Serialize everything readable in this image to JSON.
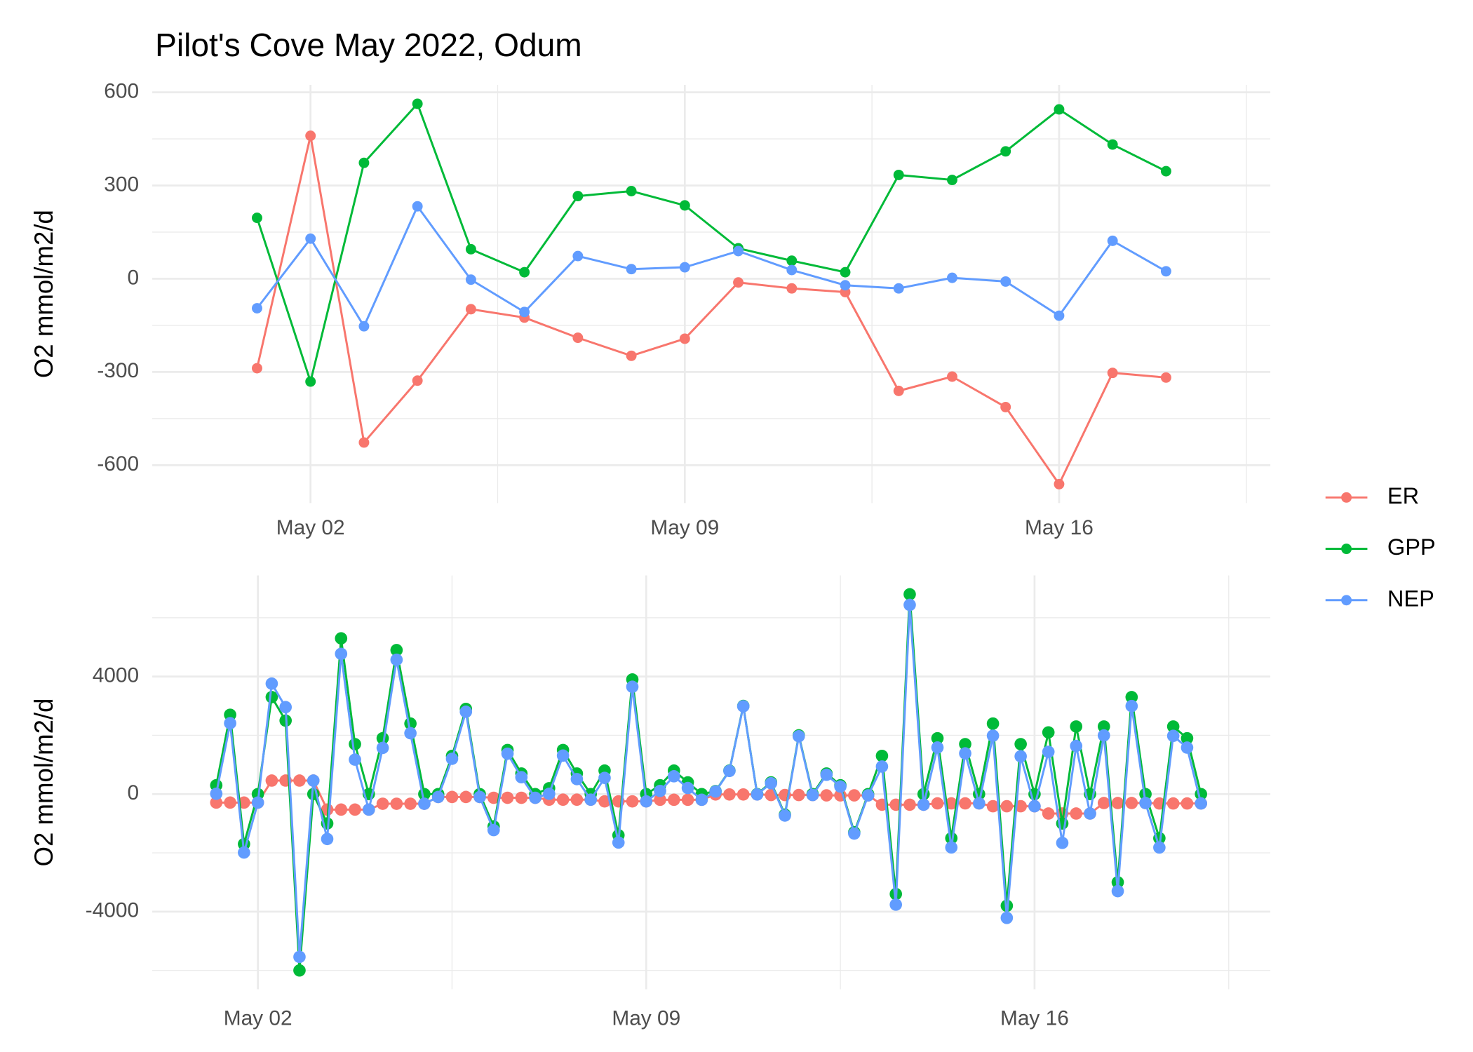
{
  "chart_data": [
    {
      "type": "line",
      "title": "Pilot's Cove May 2022, Odum",
      "ylabel": "O2 mmol/m2/d",
      "x": [
        1,
        2,
        3,
        4,
        5,
        6,
        7,
        8,
        9,
        10,
        11,
        12,
        13,
        14,
        15,
        16,
        17,
        18
      ],
      "series": [
        {
          "name": "ER",
          "color": "#F8766D",
          "values": [
            -288,
            460,
            -527,
            -328,
            -98,
            -125,
            -190,
            -248,
            -193,
            -12,
            -31,
            -43,
            -361,
            -315,
            -413,
            -661,
            -303,
            -318
          ]
        },
        {
          "name": "GPP",
          "color": "#00BA38",
          "values": [
            196,
            -331,
            373,
            563,
            95,
            21,
            266,
            282,
            236,
            98,
            58,
            21,
            334,
            318,
            410,
            545,
            432,
            346
          ]
        },
        {
          "name": "NEP",
          "color": "#619CFF",
          "values": [
            -95,
            129,
            -153,
            233,
            -3,
            -107,
            73,
            31,
            37,
            89,
            28,
            -21,
            -31,
            3,
            -9,
            -119,
            122,
            24
          ]
        }
      ],
      "xlim": [
        -0.96,
        19.95
      ],
      "xticks": [
        {
          "value": 2,
          "label": "May 02"
        },
        {
          "value": 9,
          "label": "May 09"
        },
        {
          "value": 16,
          "label": "May 16"
        }
      ],
      "xticks_minor": [
        5.5,
        12.5,
        19.5
      ],
      "ylim": [
        -722,
        624
      ],
      "yticks": [
        -600,
        -300,
        0,
        300,
        600
      ],
      "yticks_minor": [
        -450,
        -150,
        150,
        450
      ],
      "grid": true,
      "legend": "right"
    },
    {
      "type": "line",
      "ylabel": "O2 mmol/m2/d",
      "x": [
        1.25,
        1.5,
        1.75,
        2,
        2.25,
        2.5,
        2.75,
        3,
        3.25,
        3.5,
        3.75,
        4,
        4.25,
        4.5,
        4.75,
        5,
        5.25,
        5.5,
        5.75,
        6,
        6.25,
        6.5,
        6.75,
        7,
        7.25,
        7.5,
        7.75,
        8,
        8.25,
        8.5,
        8.75,
        9,
        9.25,
        9.5,
        9.75,
        10,
        10.25,
        10.5,
        10.75,
        11,
        11.25,
        11.5,
        11.75,
        12,
        12.25,
        12.5,
        12.75,
        13,
        13.25,
        13.5,
        13.75,
        14,
        14.25,
        14.5,
        14.75,
        15,
        15.25,
        15.5,
        15.75,
        16,
        16.25,
        16.5,
        16.75,
        17,
        17.25,
        17.5,
        17.75,
        18,
        18.25,
        18.5,
        18.75,
        19
      ],
      "series": [
        {
          "color": "#F8766D",
          "values": [
            -288,
            -288,
            -288,
            -288,
            460,
            460,
            460,
            460,
            -527,
            -527,
            -527,
            -527,
            -328,
            -328,
            -328,
            -328,
            -98,
            -98,
            -98,
            -98,
            -125,
            -125,
            -125,
            -125,
            -190,
            -190,
            -190,
            -190,
            -248,
            -248,
            -248,
            -248,
            -193,
            -193,
            -193,
            -193,
            -12,
            -12,
            -12,
            -12,
            -31,
            -31,
            -31,
            -31,
            -43,
            -43,
            -43,
            -43,
            -361,
            -361,
            -361,
            -361,
            -315,
            -315,
            -315,
            -315,
            -413,
            -413,
            -413,
            -413,
            -661,
            -661,
            -661,
            -661,
            -303,
            -303,
            -303,
            -303,
            -318,
            -318,
            -318,
            -318
          ]
        },
        {
          "color": "#00BA38",
          "values": [
            300,
            2700,
            -1700,
            0,
            3300,
            2500,
            -6000,
            0,
            -1000,
            5300,
            1700,
            0,
            1900,
            4900,
            2400,
            0,
            0,
            1300,
            2900,
            0,
            -1100,
            1500,
            700,
            0,
            200,
            1500,
            700,
            0,
            800,
            -1400,
            3900,
            0,
            300,
            800,
            400,
            0,
            100,
            800,
            3000,
            0,
            400,
            -700,
            2000,
            0,
            700,
            300,
            -1300,
            0,
            1300,
            -3400,
            6800,
            0,
            1900,
            -1500,
            1700,
            0,
            2400,
            -3800,
            1700,
            0,
            2100,
            -1000,
            2300,
            0,
            2300,
            -3000,
            3300,
            0,
            -1500,
            2300,
            1900,
            0
          ]
        },
        {
          "color": "#619CFF",
          "values": [
            12,
            2412,
            -1988,
            -288,
            3760,
            2960,
            -5540,
            460,
            -1527,
            4773,
            1173,
            -527,
            1572,
            4572,
            2072,
            -328,
            -98,
            1202,
            2802,
            -98,
            -1225,
            1375,
            575,
            -125,
            10,
            1310,
            510,
            -190,
            552,
            -1648,
            3652,
            -248,
            107,
            607,
            207,
            -193,
            88,
            788,
            2988,
            -12,
            369,
            -731,
            1969,
            -31,
            657,
            257,
            -1343,
            -43,
            939,
            -3761,
            6439,
            -361,
            1585,
            -1815,
            1385,
            -315,
            1987,
            -4213,
            1287,
            -413,
            1439,
            -1661,
            1639,
            -661,
            1997,
            -3303,
            2997,
            -303,
            -1818,
            1982,
            1582,
            -318
          ]
        }
      ],
      "xlim": [
        0.096,
        20.25
      ],
      "xticks": [
        {
          "value": 2,
          "label": "May 02"
        },
        {
          "value": 9,
          "label": "May 09"
        },
        {
          "value": 16,
          "label": "May 16"
        }
      ],
      "xticks_minor": [
        5.5,
        12.5,
        19.5
      ],
      "ylim": [
        -6640,
        7440
      ],
      "yticks": [
        -4000,
        0,
        4000
      ],
      "yticks_minor": [
        -6000,
        -2000,
        2000,
        6000
      ],
      "grid": true
    }
  ]
}
